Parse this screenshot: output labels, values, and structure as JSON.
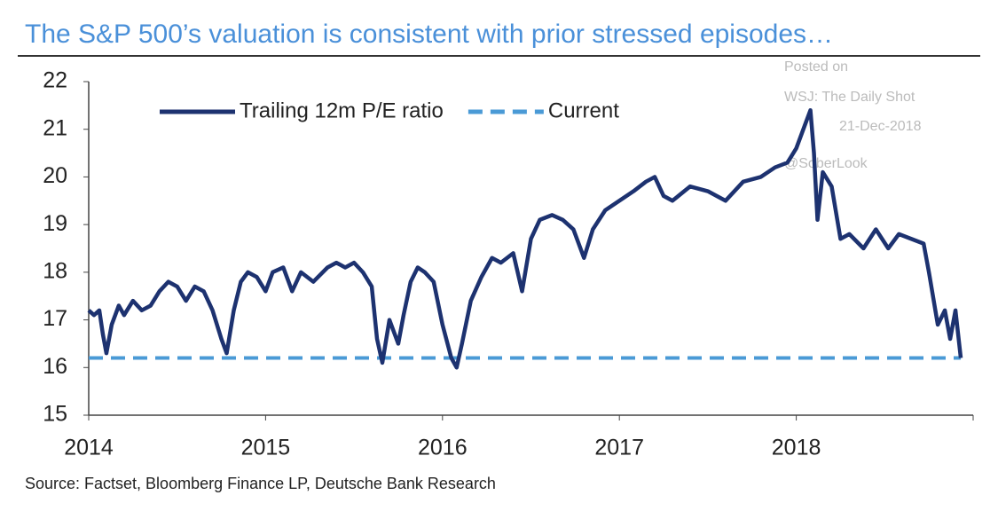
{
  "chart_data": {
    "type": "line",
    "title": "The S&P 500’s valuation is consistent with prior stressed episodes…",
    "source": "Source: Factset, Bloomberg Finance LP, Deutsche Bank Research",
    "watermark": [
      "Posted on",
      "WSJ: The Daily Shot",
      "21-Dec-2018",
      "@SoberLook"
    ],
    "xlim": [
      2014,
      2019
    ],
    "xticks": [
      2014,
      2015,
      2016,
      2017,
      2018
    ],
    "ylim": [
      15,
      22
    ],
    "yticks": [
      15,
      16,
      17,
      18,
      19,
      20,
      21,
      22
    ],
    "legend": "top-left",
    "series": [
      {
        "name": "Trailing 12m P/E ratio",
        "color": "#1d3270",
        "style": "solid",
        "x": [
          2014.0,
          2014.03,
          2014.06,
          2014.08,
          2014.1,
          2014.13,
          2014.17,
          2014.2,
          2014.25,
          2014.3,
          2014.35,
          2014.4,
          2014.45,
          2014.5,
          2014.55,
          2014.6,
          2014.65,
          2014.7,
          2014.75,
          2014.78,
          2014.82,
          2014.86,
          2014.9,
          2014.95,
          2015.0,
          2015.04,
          2015.1,
          2015.15,
          2015.2,
          2015.27,
          2015.35,
          2015.4,
          2015.45,
          2015.5,
          2015.55,
          2015.6,
          2015.63,
          2015.66,
          2015.7,
          2015.75,
          2015.78,
          2015.82,
          2015.86,
          2015.9,
          2015.95,
          2016.0,
          2016.05,
          2016.08,
          2016.11,
          2016.16,
          2016.22,
          2016.28,
          2016.33,
          2016.4,
          2016.45,
          2016.5,
          2016.55,
          2016.62,
          2016.68,
          2016.74,
          2016.8,
          2016.85,
          2016.92,
          2017.0,
          2017.08,
          2017.15,
          2017.2,
          2017.25,
          2017.3,
          2017.4,
          2017.5,
          2017.6,
          2017.7,
          2017.8,
          2017.88,
          2017.95,
          2018.0,
          2018.05,
          2018.08,
          2018.1,
          2018.12,
          2018.15,
          2018.2,
          2018.25,
          2018.3,
          2018.38,
          2018.45,
          2018.52,
          2018.58,
          2018.65,
          2018.72,
          2018.75,
          2018.8,
          2018.84,
          2018.87,
          2018.9,
          2018.93
        ],
        "values": [
          17.2,
          17.1,
          17.2,
          16.7,
          16.3,
          16.9,
          17.3,
          17.1,
          17.4,
          17.2,
          17.3,
          17.6,
          17.8,
          17.7,
          17.4,
          17.7,
          17.6,
          17.2,
          16.6,
          16.3,
          17.2,
          17.8,
          18.0,
          17.9,
          17.6,
          18.0,
          18.1,
          17.6,
          18.0,
          17.8,
          18.1,
          18.2,
          18.1,
          18.2,
          18.0,
          17.7,
          16.6,
          16.1,
          17.0,
          16.5,
          17.1,
          17.8,
          18.1,
          18.0,
          17.8,
          16.9,
          16.2,
          16.0,
          16.5,
          17.4,
          17.9,
          18.3,
          18.2,
          18.4,
          17.6,
          18.7,
          19.1,
          19.2,
          19.1,
          18.9,
          18.3,
          18.9,
          19.3,
          19.5,
          19.7,
          19.9,
          20.0,
          19.6,
          19.5,
          19.8,
          19.7,
          19.5,
          19.9,
          20.0,
          20.2,
          20.3,
          20.6,
          21.1,
          21.4,
          20.5,
          19.1,
          20.1,
          19.8,
          18.7,
          18.8,
          18.5,
          18.9,
          18.5,
          18.8,
          18.7,
          18.6,
          18.0,
          16.9,
          17.2,
          16.6,
          17.2,
          16.2
        ]
      },
      {
        "name": "Current",
        "color": "#4a9ad6",
        "style": "dashed",
        "x": [
          2014.0,
          2018.93
        ],
        "values": [
          16.2,
          16.2
        ]
      }
    ]
  }
}
